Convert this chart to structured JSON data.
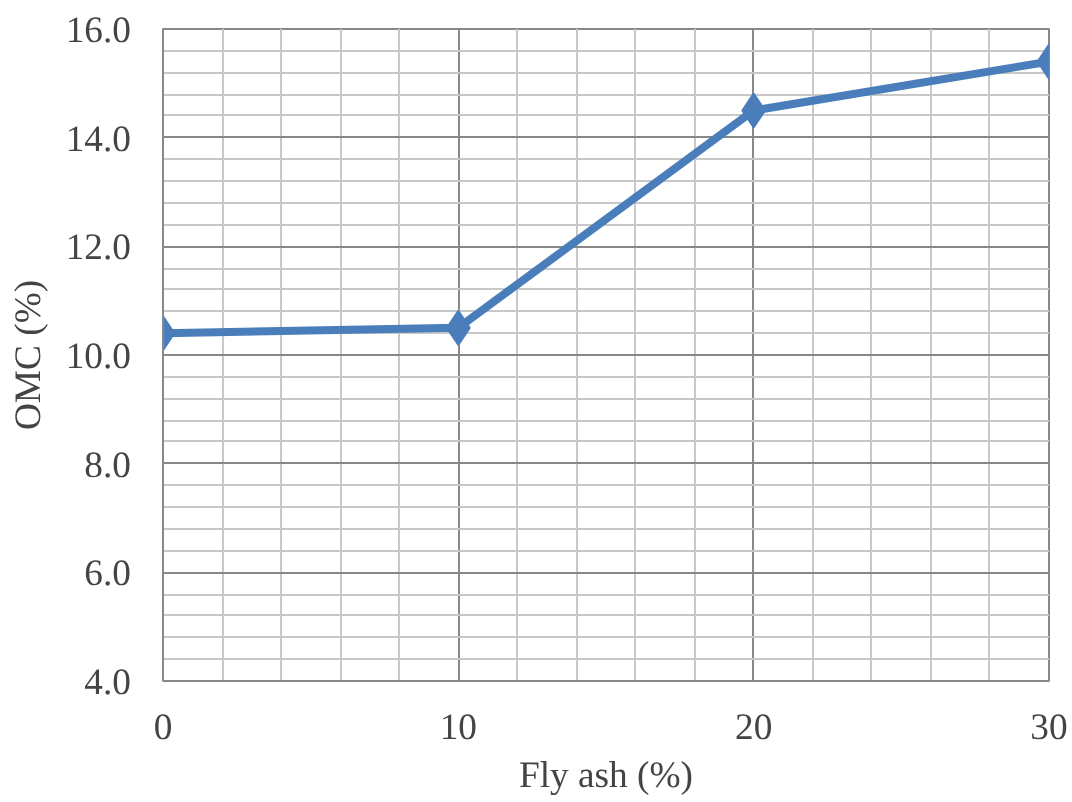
{
  "chart_data": {
    "type": "line",
    "xlabel": "Fly ash (%)",
    "ylabel": "OMC (%)",
    "x": [
      0,
      10,
      20,
      30
    ],
    "series": [
      {
        "color": "#4a7ebb",
        "values": [
          10.4,
          10.5,
          14.5,
          15.4
        ]
      }
    ],
    "xlim": [
      0,
      30
    ],
    "xticks": [
      0,
      10,
      20,
      30
    ],
    "ylim": [
      4,
      16
    ],
    "yticks": [
      {
        "value": 4,
        "label": "4.0"
      },
      {
        "value": 6,
        "label": "6.0"
      },
      {
        "value": 8,
        "label": "8.0"
      },
      {
        "value": 10,
        "label": "10.0"
      },
      {
        "value": 12,
        "label": "12.0"
      },
      {
        "value": 14,
        "label": "14.0"
      },
      {
        "value": 16,
        "label": "16.0"
      }
    ],
    "grid": true,
    "marker": "diamond",
    "line_style": "solid"
  }
}
